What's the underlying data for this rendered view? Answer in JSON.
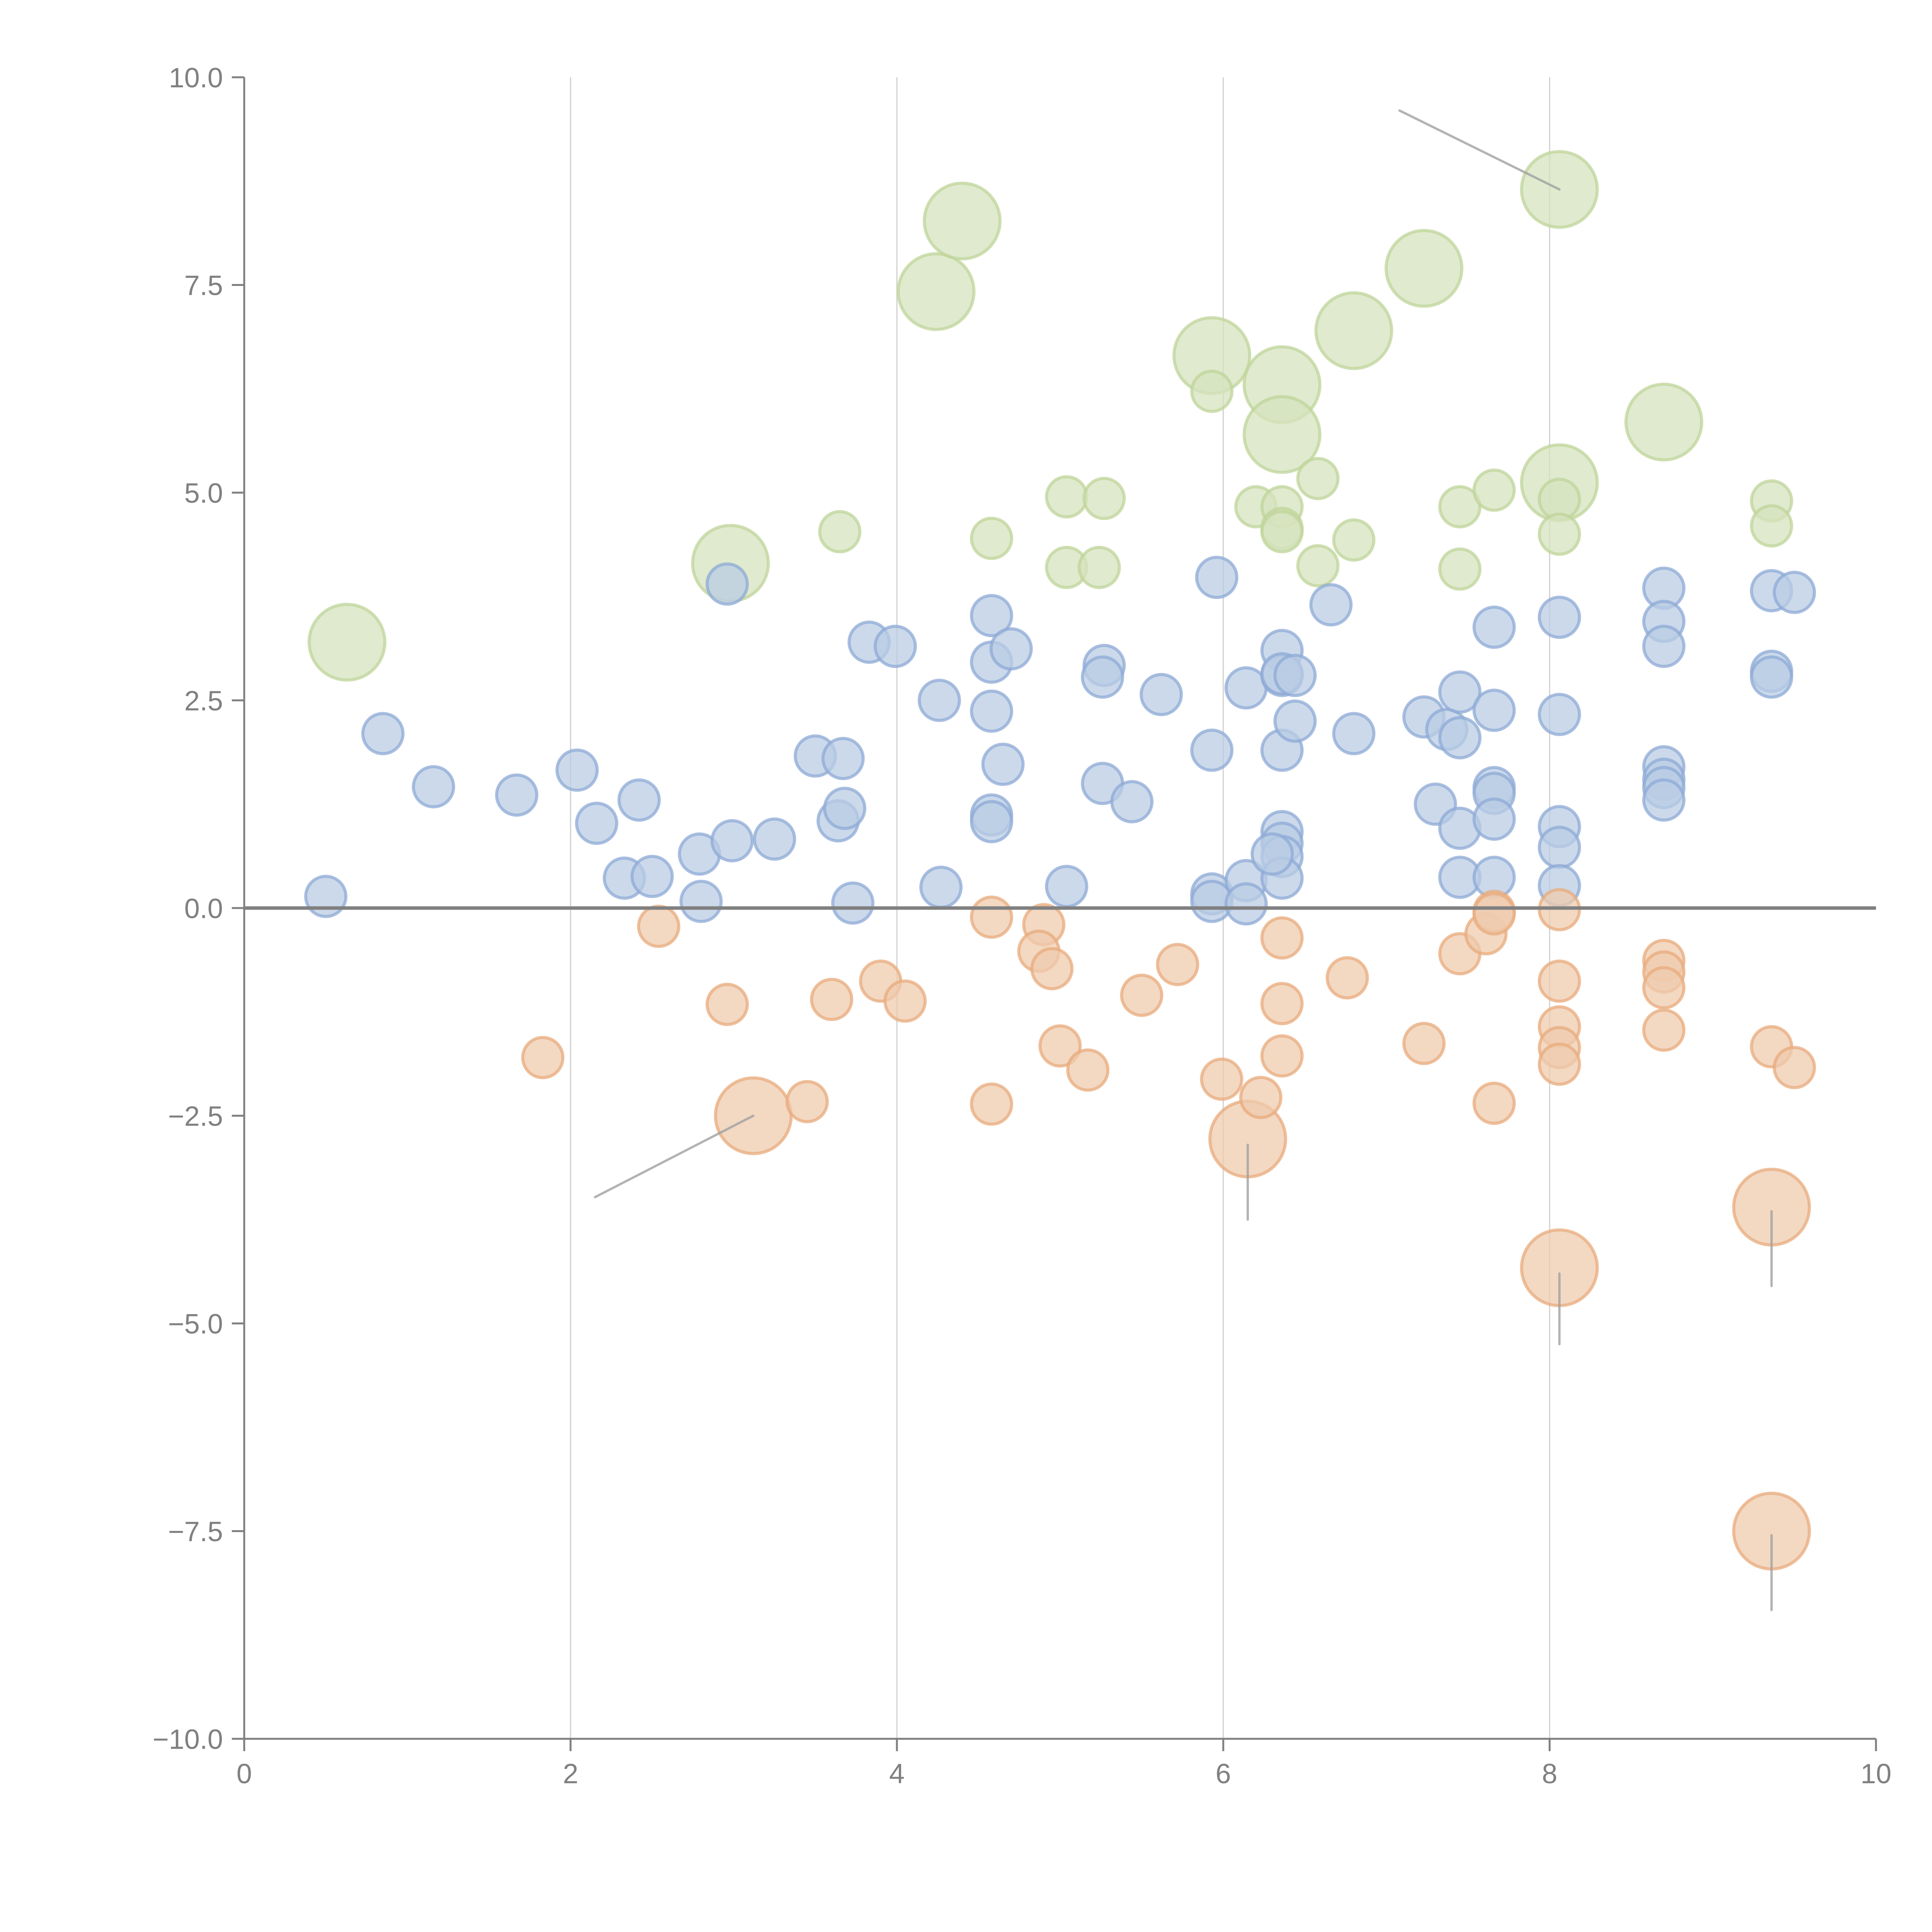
{
  "chart_data": {
    "type": "scatter",
    "subtype": "bubble",
    "title": "",
    "xlabel": "",
    "ylabel": "",
    "xlim": [
      0,
      10
    ],
    "ylim": [
      -10,
      10
    ],
    "xticks": [
      "0",
      "2",
      "4",
      "6",
      "8",
      "10"
    ],
    "yticks": [
      "10.0",
      "7.5",
      "5.0",
      "2.5",
      "0.0",
      "−2.5",
      "−5.0",
      "−7.5",
      "−10.0"
    ],
    "xtick_values": [
      0,
      2,
      4,
      6,
      8,
      10
    ],
    "ytick_values": [
      10,
      7.5,
      5,
      2.5,
      0,
      -2.5,
      -5,
      -7.5,
      -10
    ],
    "grid": "vertical",
    "zero_line": true,
    "legend": "none",
    "colors": {
      "positive_small": "#4e79c4",
      "positive_large": "#8fb84f",
      "negative": "#e0893f",
      "axis": "#808080",
      "grid": "#d0d0d0",
      "leader": "#a0a0a0"
    },
    "series": [
      {
        "name": "green",
        "color": "#8fb84f",
        "points": [
          [
            0.63,
            3.2,
            2
          ],
          [
            2.98,
            4.15,
            2
          ],
          [
            4.24,
            7.42,
            2
          ],
          [
            4.4,
            8.27,
            2
          ],
          [
            5.93,
            6.65,
            2
          ],
          [
            6.36,
            6.3,
            2
          ],
          [
            6.36,
            5.7,
            2
          ],
          [
            6.8,
            6.95,
            2
          ],
          [
            7.23,
            7.7,
            2
          ],
          [
            8.06,
            8.65,
            2
          ],
          [
            8.06,
            5.12,
            2
          ],
          [
            8.7,
            5.85,
            2
          ],
          [
            3.65,
            4.53,
            1
          ],
          [
            4.58,
            4.45,
            1
          ],
          [
            5.04,
            4.95,
            1
          ],
          [
            5.04,
            4.1,
            1
          ],
          [
            5.27,
            4.93,
            1
          ],
          [
            5.24,
            4.1,
            1
          ],
          [
            5.93,
            6.22,
            1
          ],
          [
            6.2,
            4.83,
            1
          ],
          [
            6.36,
            4.83,
            1
          ],
          [
            6.36,
            4.57,
            1
          ],
          [
            6.36,
            4.53,
            1
          ],
          [
            6.58,
            5.17,
            1
          ],
          [
            6.58,
            4.12,
            1
          ],
          [
            6.8,
            4.43,
            1
          ],
          [
            7.45,
            4.83,
            1
          ],
          [
            7.45,
            4.08,
            1
          ],
          [
            7.66,
            5.03,
            1
          ],
          [
            8.06,
            4.92,
            1
          ],
          [
            8.06,
            4.5,
            1
          ],
          [
            9.36,
            4.9,
            1
          ],
          [
            9.36,
            4.6,
            1
          ]
        ]
      },
      {
        "name": "blue",
        "color": "#4e79c4",
        "points": [
          [
            0.5,
            0.14,
            1
          ],
          [
            0.85,
            2.1,
            1
          ],
          [
            1.16,
            1.46,
            1
          ],
          [
            1.67,
            1.36,
            1
          ],
          [
            2.04,
            1.66,
            1
          ],
          [
            2.16,
            1.02,
            1
          ],
          [
            2.33,
            0.36,
            1
          ],
          [
            2.42,
            1.3,
            1
          ],
          [
            2.5,
            0.38,
            1
          ],
          [
            2.79,
            0.65,
            1
          ],
          [
            2.8,
            0.08,
            1
          ],
          [
            2.99,
            0.81,
            1
          ],
          [
            2.96,
            3.9,
            1
          ],
          [
            3.25,
            0.83,
            1
          ],
          [
            3.5,
            1.83,
            1
          ],
          [
            3.67,
            1.8,
            1
          ],
          [
            3.64,
            1.05,
            1
          ],
          [
            3.68,
            1.2,
            1
          ],
          [
            3.73,
            0.06,
            1
          ],
          [
            3.83,
            3.2,
            1
          ],
          [
            3.99,
            3.15,
            1
          ],
          [
            4.26,
            2.5,
            1
          ],
          [
            4.27,
            0.25,
            1
          ],
          [
            4.58,
            3.52,
            1
          ],
          [
            4.58,
            2.96,
            1
          ],
          [
            4.58,
            2.37,
            1
          ],
          [
            4.58,
            1.12,
            1
          ],
          [
            4.58,
            1.04,
            1
          ],
          [
            4.65,
            1.73,
            1
          ],
          [
            4.7,
            3.12,
            1
          ],
          [
            5.04,
            0.26,
            1
          ],
          [
            5.27,
            2.92,
            1
          ],
          [
            5.26,
            2.78,
            1
          ],
          [
            5.26,
            1.5,
            1
          ],
          [
            5.44,
            1.28,
            1
          ],
          [
            5.62,
            2.57,
            1
          ],
          [
            5.93,
            1.9,
            1
          ],
          [
            5.93,
            0.17,
            1
          ],
          [
            5.93,
            0.08,
            1
          ],
          [
            5.96,
            3.98,
            1
          ],
          [
            6.14,
            2.65,
            1
          ],
          [
            6.14,
            0.33,
            1
          ],
          [
            6.14,
            0.05,
            1
          ],
          [
            6.36,
            3.1,
            1
          ],
          [
            6.36,
            2.8,
            1
          ],
          [
            6.36,
            2.82,
            1
          ],
          [
            6.36,
            1.9,
            1
          ],
          [
            6.36,
            0.92,
            1
          ],
          [
            6.36,
            0.78,
            1
          ],
          [
            6.36,
            0.62,
            1
          ],
          [
            6.36,
            0.36,
            1
          ],
          [
            6.3,
            0.65,
            1
          ],
          [
            6.44,
            2.8,
            1
          ],
          [
            6.44,
            2.25,
            1
          ],
          [
            6.66,
            3.65,
            1
          ],
          [
            6.8,
            2.1,
            1
          ],
          [
            7.23,
            2.3,
            1
          ],
          [
            7.3,
            1.25,
            1
          ],
          [
            7.37,
            2.15,
            1
          ],
          [
            7.45,
            2.6,
            1
          ],
          [
            7.45,
            2.05,
            1
          ],
          [
            7.45,
            0.96,
            1
          ],
          [
            7.45,
            0.37,
            1
          ],
          [
            7.66,
            3.38,
            1
          ],
          [
            7.66,
            2.38,
            1
          ],
          [
            7.66,
            1.45,
            1
          ],
          [
            7.66,
            1.38,
            1
          ],
          [
            7.66,
            1.07,
            1
          ],
          [
            7.66,
            0.37,
            1
          ],
          [
            8.06,
            3.5,
            1
          ],
          [
            8.06,
            2.33,
            1
          ],
          [
            8.06,
            0.98,
            1
          ],
          [
            8.06,
            0.73,
            1
          ],
          [
            8.06,
            0.27,
            1
          ],
          [
            8.7,
            3.85,
            1
          ],
          [
            8.7,
            3.45,
            1
          ],
          [
            8.7,
            3.15,
            1
          ],
          [
            8.7,
            1.7,
            1
          ],
          [
            8.7,
            1.55,
            1
          ],
          [
            8.7,
            1.45,
            1
          ],
          [
            8.7,
            1.3,
            1
          ],
          [
            9.36,
            3.82,
            1
          ],
          [
            9.36,
            2.85,
            1
          ],
          [
            9.36,
            2.78,
            1
          ],
          [
            9.5,
            3.8,
            1
          ]
        ]
      },
      {
        "name": "orange",
        "color": "#e0893f",
        "points": [
          [
            1.83,
            -1.8,
            1
          ],
          [
            2.54,
            -0.22,
            1
          ],
          [
            2.96,
            -1.16,
            1
          ],
          [
            3.12,
            -2.5,
            2
          ],
          [
            3.45,
            -2.33,
            1
          ],
          [
            3.6,
            -1.1,
            1
          ],
          [
            3.9,
            -0.88,
            1
          ],
          [
            4.05,
            -1.12,
            1
          ],
          [
            4.58,
            -0.11,
            1
          ],
          [
            4.58,
            -2.36,
            1
          ],
          [
            4.9,
            -0.2,
            1
          ],
          [
            4.87,
            -0.52,
            1
          ],
          [
            4.95,
            -0.73,
            1
          ],
          [
            5.0,
            -1.66,
            1
          ],
          [
            5.17,
            -1.95,
            1
          ],
          [
            5.5,
            -1.05,
            1
          ],
          [
            5.72,
            -0.68,
            1
          ],
          [
            5.99,
            -2.06,
            1
          ],
          [
            6.15,
            -2.78,
            2
          ],
          [
            6.23,
            -2.28,
            1
          ],
          [
            6.36,
            -0.36,
            1
          ],
          [
            6.36,
            -1.15,
            1
          ],
          [
            6.36,
            -1.78,
            1
          ],
          [
            6.76,
            -0.84,
            1
          ],
          [
            7.23,
            -1.63,
            1
          ],
          [
            7.45,
            -0.55,
            1
          ],
          [
            7.61,
            -0.31,
            1
          ],
          [
            7.66,
            -0.04,
            1
          ],
          [
            7.66,
            -0.07,
            1
          ],
          [
            7.66,
            -2.35,
            1
          ],
          [
            8.06,
            -0.02,
            1
          ],
          [
            8.06,
            -0.88,
            1
          ],
          [
            8.06,
            -1.43,
            1
          ],
          [
            8.06,
            -1.68,
            1
          ],
          [
            8.06,
            -1.88,
            1
          ],
          [
            8.06,
            -4.33,
            2
          ],
          [
            8.7,
            -0.63,
            1
          ],
          [
            8.7,
            -0.77,
            1
          ],
          [
            8.7,
            -0.96,
            1
          ],
          [
            8.7,
            -1.47,
            1
          ],
          [
            9.36,
            -1.67,
            1
          ],
          [
            9.36,
            -3.6,
            2
          ],
          [
            9.36,
            -7.5,
            2
          ],
          [
            9.5,
            -1.92,
            1
          ]
        ]
      }
    ],
    "leader_lines": [
      {
        "from": [
          8.06,
          8.65
        ],
        "to": [
          7.08,
          9.6
        ]
      },
      {
        "from": [
          3.12,
          -2.5
        ],
        "to": [
          2.15,
          -3.48
        ]
      },
      {
        "from": [
          6.15,
          -2.85
        ],
        "to": [
          6.15,
          -3.75
        ]
      },
      {
        "from": [
          8.06,
          -4.4
        ],
        "to": [
          8.06,
          -5.25
        ]
      },
      {
        "from": [
          9.36,
          -3.65
        ],
        "to": [
          9.36,
          -4.55
        ]
      },
      {
        "from": [
          9.36,
          -7.55
        ],
        "to": [
          9.36,
          -8.45
        ]
      }
    ]
  }
}
